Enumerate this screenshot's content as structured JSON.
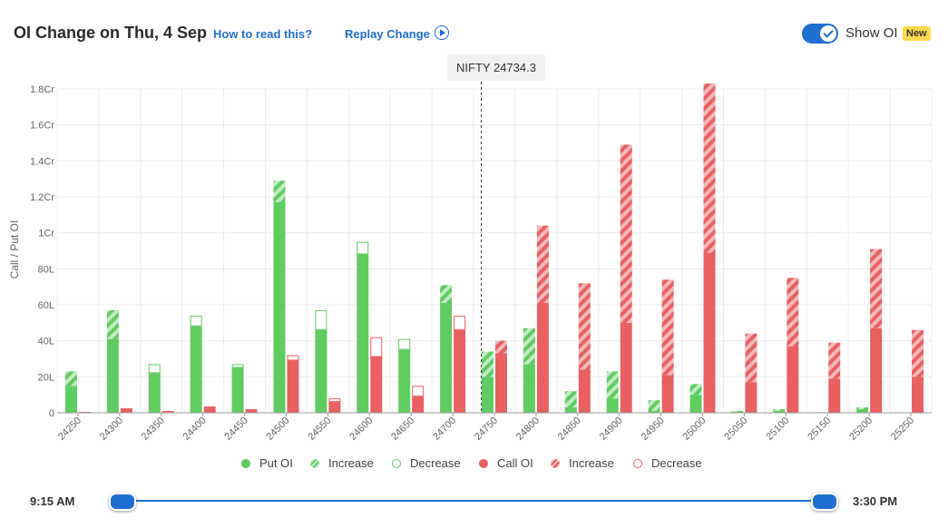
{
  "header": {
    "title": "OI Change on Thu, 4 Sep",
    "how_to_read": "How to read this?",
    "replay": "Replay Change",
    "show_oi_label": "Show OI",
    "new_badge": "New",
    "show_oi_on": true
  },
  "tooltip": {
    "text": "NIFTY 24734.3"
  },
  "colors": {
    "put": "#5fcc5f",
    "put_light": "#c2ecc2",
    "call": "#e86060",
    "call_light": "#f5b8b8",
    "accent": "#1f6fd1"
  },
  "legend": [
    "Put OI",
    "Increase",
    "Decrease",
    "Call OI",
    "Increase",
    "Decrease"
  ],
  "time": {
    "start": "9:15 AM",
    "end": "3:30 PM"
  },
  "chart_data": {
    "type": "bar",
    "ylabel": "Call / Put OI",
    "ylim": [
      0,
      1.8
    ],
    "yunit": "Cr",
    "yticks": [
      {
        "v": 0,
        "label": "0"
      },
      {
        "v": 0.2,
        "label": "20L"
      },
      {
        "v": 0.4,
        "label": "40L"
      },
      {
        "v": 0.6,
        "label": "60L"
      },
      {
        "v": 0.8,
        "label": "80L"
      },
      {
        "v": 1.0,
        "label": "1Cr"
      },
      {
        "v": 1.2,
        "label": "1.2Cr"
      },
      {
        "v": 1.4,
        "label": "1.4Cr"
      },
      {
        "v": 1.6,
        "label": "1.6Cr"
      },
      {
        "v": 1.8,
        "label": "1.8Cr"
      }
    ],
    "spot": 24734.3,
    "categories": [
      "24250",
      "24300",
      "24350",
      "24400",
      "24450",
      "24500",
      "24550",
      "24600",
      "24650",
      "24700",
      "24750",
      "24800",
      "24850",
      "24900",
      "24950",
      "25000",
      "25050",
      "25100",
      "25150",
      "25200",
      "25250"
    ],
    "put": {
      "base": [
        0.15,
        0.41,
        0.22,
        0.48,
        0.25,
        1.17,
        0.46,
        0.88,
        0.35,
        0.61,
        0.2,
        0.27,
        0.03,
        0.08,
        0.01,
        0.1,
        0.005,
        0.01,
        0.003,
        0.02,
        0.0
      ],
      "increase": [
        0.08,
        0.16,
        0.0,
        0.0,
        0.0,
        0.12,
        0.0,
        0.0,
        0.0,
        0.1,
        0.14,
        0.2,
        0.09,
        0.15,
        0.06,
        0.06,
        0.005,
        0.01,
        0.0,
        0.01,
        0.0
      ],
      "decrease": [
        0.0,
        0.0,
        0.05,
        0.06,
        0.02,
        0.0,
        0.11,
        0.07,
        0.06,
        0.0,
        0.0,
        0.0,
        0.0,
        0.0,
        0.0,
        0.0,
        0.0,
        0.0,
        0.0,
        0.0,
        0.0
      ]
    },
    "call": {
      "base": [
        0.005,
        0.025,
        0.01,
        0.025,
        0.02,
        0.29,
        0.06,
        0.31,
        0.09,
        0.46,
        0.33,
        0.61,
        0.24,
        0.5,
        0.21,
        0.89,
        0.17,
        0.37,
        0.19,
        0.47,
        0.2
      ],
      "increase": [
        0.0,
        0.0,
        0.0,
        0.0,
        0.0,
        0.0,
        0.0,
        0.0,
        0.0,
        0.0,
        0.07,
        0.43,
        0.48,
        0.99,
        0.53,
        0.94,
        0.27,
        0.38,
        0.2,
        0.44,
        0.26
      ],
      "decrease": [
        0.0,
        0.0,
        0.0,
        0.01,
        0.0,
        0.03,
        0.02,
        0.11,
        0.06,
        0.08,
        0.0,
        0.0,
        0.0,
        0.0,
        0.0,
        0.0,
        0.0,
        0.0,
        0.0,
        0.0,
        0.0
      ]
    }
  }
}
